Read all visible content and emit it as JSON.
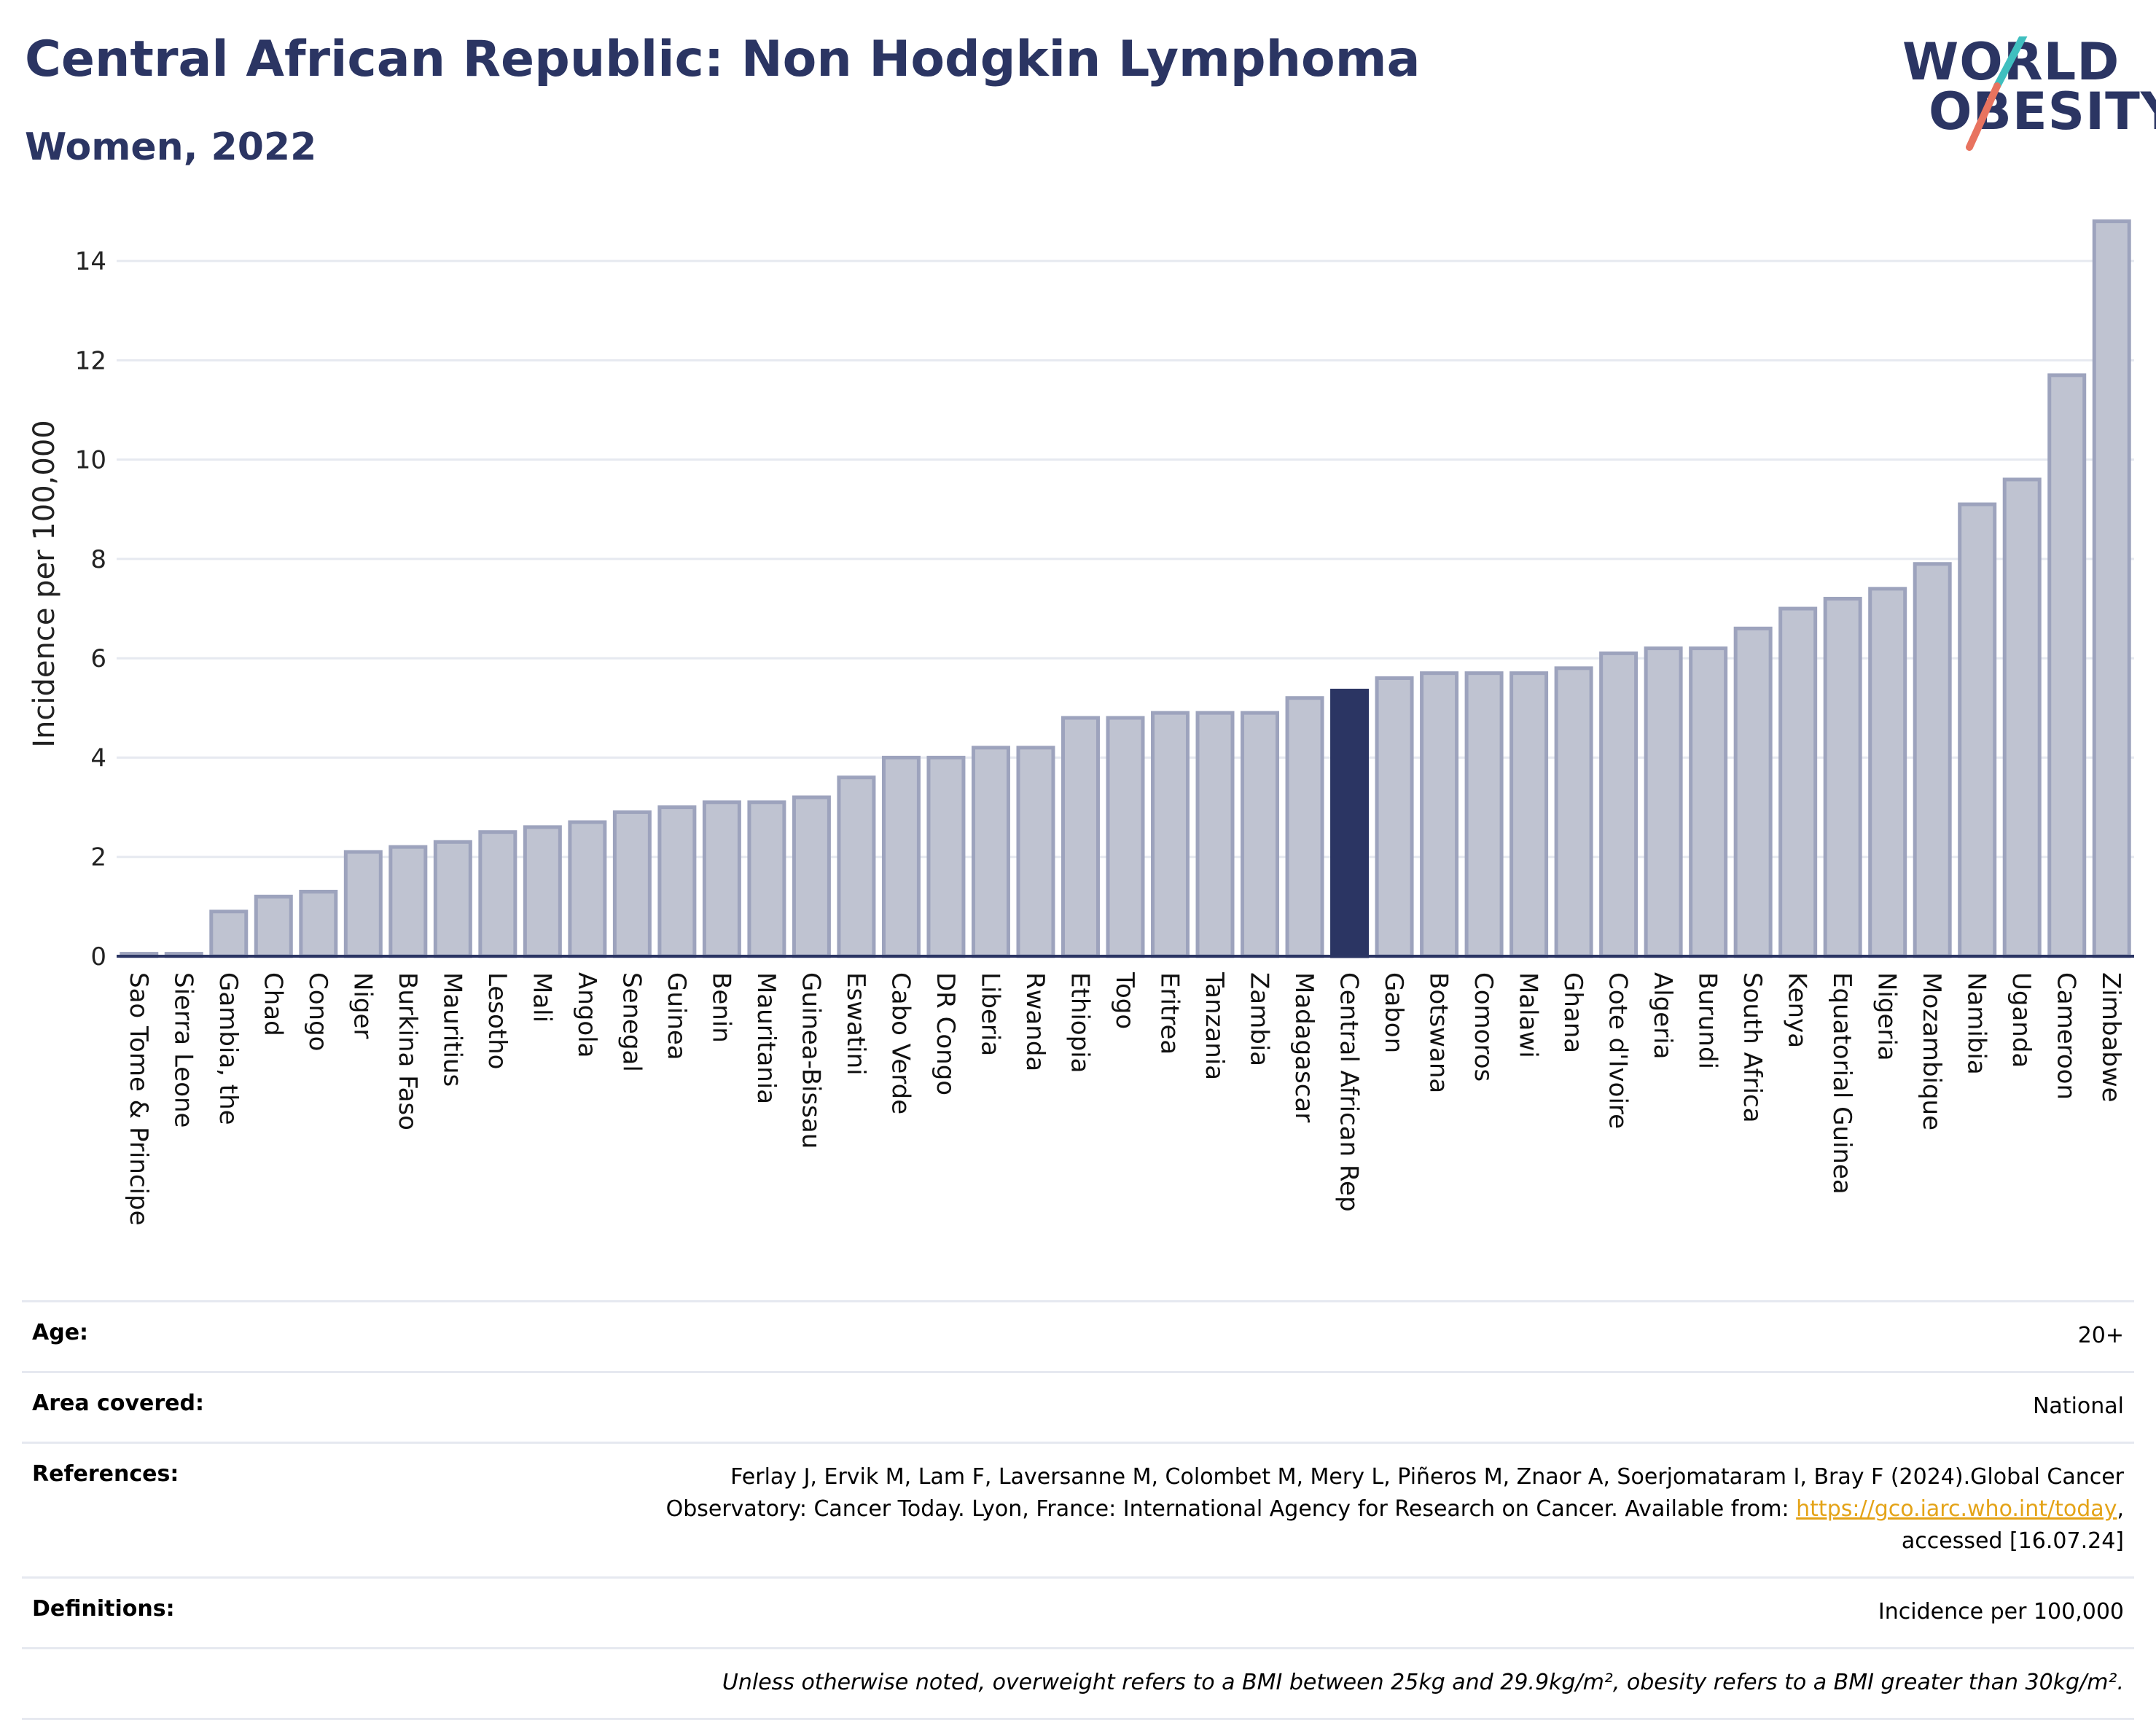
{
  "header": {
    "title": "Central African Republic: Non Hodgkin Lymphoma",
    "subtitle": "Women, 2022"
  },
  "logo": {
    "line1": "WORLD",
    "line2": "OBESITY",
    "colors": {
      "text": "#2b3563",
      "slash_teal": "#3fbfbf",
      "slash_coral": "#e8735f"
    }
  },
  "chart_data": {
    "type": "bar",
    "ylabel": "Incidence per 100,000",
    "ylim": [
      0,
      15
    ],
    "yticks": [
      0,
      2,
      4,
      6,
      8,
      10,
      12,
      14
    ],
    "grid": true,
    "highlight": "Central African Rep",
    "colors": {
      "bar": "#bfc3d1",
      "bar_edge": "#9da3bd",
      "highlight": "#2b3563",
      "grid": "#e6e9f0",
      "axis": "#2b3563"
    },
    "categories": [
      "Sao Tome & Principe",
      "Sierra Leone",
      "Gambia, the",
      "Chad",
      "Congo",
      "Niger",
      "Burkina Faso",
      "Mauritius",
      "Lesotho",
      "Mali",
      "Angola",
      "Senegal",
      "Guinea",
      "Benin",
      "Mauritania",
      "Guinea-Bissau",
      "Eswatini",
      "Cabo Verde",
      "DR Congo",
      "Liberia",
      "Rwanda",
      "Ethiopia",
      "Togo",
      "Eritrea",
      "Tanzania",
      "Zambia",
      "Madagascar",
      "Central African Rep",
      "Gabon",
      "Botswana",
      "Comoros",
      "Malawi",
      "Ghana",
      "Cote d'Ivoire",
      "Algeria",
      "Burundi",
      "South Africa",
      "Kenya",
      "Equatorial Guinea",
      "Nigeria",
      "Mozambique",
      "Namibia",
      "Uganda",
      "Cameroon",
      "Zimbabwe"
    ],
    "values": [
      0.05,
      0.05,
      0.9,
      1.2,
      1.3,
      2.1,
      2.2,
      2.3,
      2.5,
      2.6,
      2.7,
      2.9,
      3.0,
      3.1,
      3.1,
      3.2,
      3.6,
      4.0,
      4.0,
      4.2,
      4.2,
      4.8,
      4.8,
      4.9,
      4.9,
      4.9,
      5.2,
      5.35,
      5.6,
      5.7,
      5.7,
      5.7,
      5.8,
      6.1,
      6.2,
      6.2,
      6.6,
      7.0,
      7.2,
      7.4,
      7.9,
      9.1,
      9.6,
      11.7,
      14.8
    ]
  },
  "info": {
    "age_label": "Age:",
    "age_value": "20+",
    "area_label": "Area covered:",
    "area_value": "National",
    "references_label": "References:",
    "references_line1": "Ferlay J, Ervik M, Lam F, Laversanne M, Colombet M, Mery L, Piñeros M, Znaor A, Soerjomataram I, Bray F (2024).Global Cancer",
    "references_line2_pre": "Observatory: Cancer Today. Lyon, France: International Agency for Research on Cancer. Available from: ",
    "references_link": "https://gco.iarc.who.int/today",
    "references_line2_post": ",",
    "references_line3": "accessed [16.07.24]",
    "definitions_label": "Definitions:",
    "definitions_value": "Incidence per 100,000",
    "note": "Unless otherwise noted, overweight refers to a BMI between 25kg and 29.9kg/m², obesity refers to a BMI greater than 30kg/m²."
  }
}
